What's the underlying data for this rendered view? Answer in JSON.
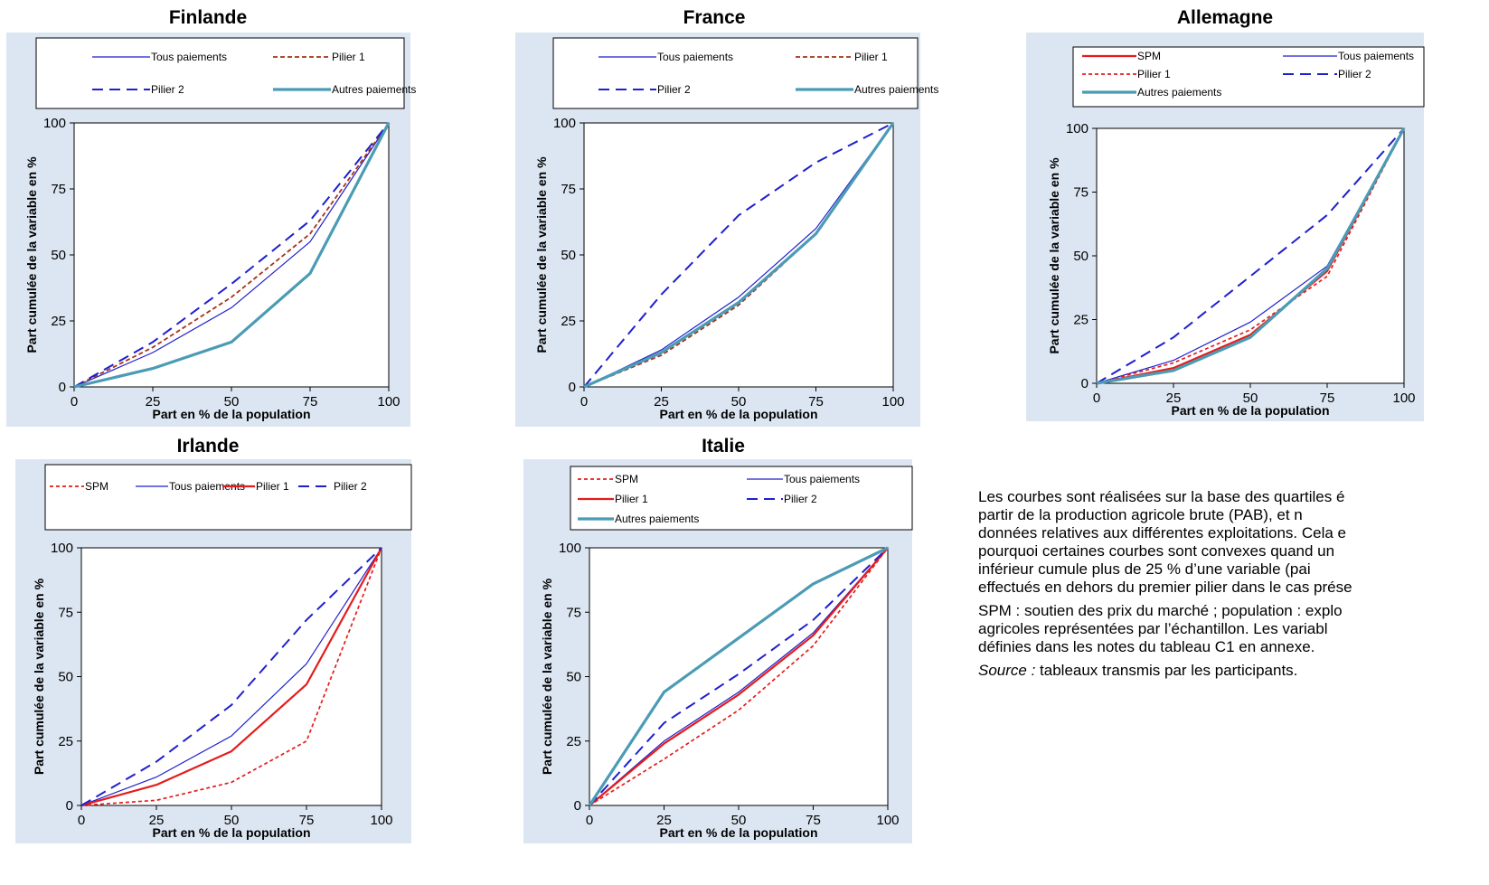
{
  "colors": {
    "background": "#dce6f2",
    "blue": "#1f1fcf",
    "dark_red": "#a5331a",
    "red": "#e41c1c",
    "teal": "#4b9bb5"
  },
  "charts": [
    {
      "title": "Finlande",
      "legend": [
        {
          "name": "Tous paiements",
          "style": "thin-blue"
        },
        {
          "name": "Pilier 1",
          "style": "dash-darkred"
        },
        {
          "name": "Pilier 2",
          "style": "dash-blue"
        },
        {
          "name": "Autres paiements",
          "style": "thick-teal"
        }
      ]
    },
    {
      "title": "France",
      "legend": [
        {
          "name": "Tous paiements",
          "style": "thin-blue"
        },
        {
          "name": "Pilier 1",
          "style": "dash-darkred"
        },
        {
          "name": "Pilier 2",
          "style": "dash-blue"
        },
        {
          "name": "Autres paiements",
          "style": "thick-teal"
        }
      ]
    },
    {
      "title": "Allemagne",
      "legend": [
        {
          "name": "SPM",
          "style": "solid-red"
        },
        {
          "name": "Tous paiements",
          "style": "thin-blue"
        },
        {
          "name": "Pilier 1",
          "style": "dash-red"
        },
        {
          "name": "Pilier 2",
          "style": "dash-blue"
        },
        {
          "name": "Autres paiements",
          "style": "thick-teal"
        }
      ]
    },
    {
      "title": "Irlande",
      "legend": [
        {
          "name": "SPM",
          "style": "dash-red"
        },
        {
          "name": "Tous paiements",
          "style": "thin-blue"
        },
        {
          "name": "Pilier 1",
          "style": "solid-red"
        },
        {
          "name": "Pilier 2",
          "style": "dash-blue"
        }
      ]
    },
    {
      "title": "Italie",
      "legend": [
        {
          "name": "SPM",
          "style": "dash-red"
        },
        {
          "name": "Tous paiements",
          "style": "thin-blue"
        },
        {
          "name": "Pilier 1",
          "style": "solid-red"
        },
        {
          "name": "Pilier 2",
          "style": "dash-blue"
        },
        {
          "name": "Autres paiements",
          "style": "thick-teal"
        }
      ]
    }
  ],
  "chart_data": [
    {
      "type": "line",
      "title": "Finlande",
      "xlabel": "Part en % de la population",
      "ylabel": "Part cumulée de la variable en %",
      "x": [
        0,
        25,
        50,
        75,
        100
      ],
      "xlim": [
        0,
        100
      ],
      "ylim": [
        0,
        100
      ],
      "xticks": [
        "0",
        "25",
        "50",
        "75",
        "100"
      ],
      "yticks": [
        "0",
        "25",
        "50",
        "75",
        "100"
      ],
      "grid": false,
      "legend_position": "top",
      "series": [
        {
          "name": "Tous paiements",
          "style": "thin-blue",
          "values": [
            0,
            13,
            30,
            55,
            100
          ]
        },
        {
          "name": "Pilier 1",
          "style": "dash-darkred",
          "values": [
            0,
            15,
            34,
            58,
            100
          ]
        },
        {
          "name": "Pilier 2",
          "style": "dash-blue",
          "values": [
            0,
            17,
            39,
            63,
            100
          ]
        },
        {
          "name": "Autres paiements",
          "style": "thick-teal",
          "values": [
            0,
            7,
            17,
            43,
            100
          ]
        }
      ]
    },
    {
      "type": "line",
      "title": "France",
      "xlabel": "Part en % de la population",
      "ylabel": "Part cumulée de la variable en %",
      "x": [
        0,
        25,
        50,
        75,
        100
      ],
      "xlim": [
        0,
        100
      ],
      "ylim": [
        0,
        100
      ],
      "xticks": [
        "0",
        "25",
        "50",
        "75",
        "100"
      ],
      "yticks": [
        "0",
        "25",
        "50",
        "75",
        "100"
      ],
      "grid": false,
      "legend_position": "top",
      "series": [
        {
          "name": "Tous paiements",
          "style": "thin-blue",
          "values": [
            0,
            14,
            34,
            60,
            100
          ]
        },
        {
          "name": "Pilier 1",
          "style": "dash-darkred",
          "values": [
            0,
            12,
            31,
            58,
            100
          ]
        },
        {
          "name": "Pilier 2",
          "style": "dash-blue",
          "values": [
            0,
            35,
            65,
            85,
            100
          ]
        },
        {
          "name": "Autres paiements",
          "style": "thick-teal",
          "values": [
            0,
            13,
            32,
            58,
            100
          ]
        }
      ]
    },
    {
      "type": "line",
      "title": "Allemagne",
      "xlabel": "Part en % de la population",
      "ylabel": "Part cumulée de la variable en %",
      "x": [
        0,
        25,
        50,
        75,
        100
      ],
      "xlim": [
        0,
        100
      ],
      "ylim": [
        0,
        100
      ],
      "xticks": [
        "0",
        "25",
        "50",
        "75",
        "100"
      ],
      "yticks": [
        "0",
        "25",
        "50",
        "75",
        "100"
      ],
      "grid": false,
      "legend_position": "top",
      "series": [
        {
          "name": "SPM",
          "style": "solid-red",
          "values": [
            0,
            6,
            19,
            44,
            100
          ]
        },
        {
          "name": "Tous paiements",
          "style": "thin-blue",
          "values": [
            0,
            9,
            24,
            46,
            100
          ]
        },
        {
          "name": "Pilier 1",
          "style": "dash-red",
          "values": [
            0,
            8,
            21,
            42,
            100
          ]
        },
        {
          "name": "Pilier 2",
          "style": "dash-blue",
          "values": [
            0,
            18,
            42,
            66,
            100
          ]
        },
        {
          "name": "Autres paiements",
          "style": "thick-teal",
          "values": [
            0,
            5,
            18,
            45,
            100
          ]
        }
      ]
    },
    {
      "type": "line",
      "title": "Irlande",
      "xlabel": "Part en % de la population",
      "ylabel": "Part cumulée de la variable en %",
      "x": [
        0,
        25,
        50,
        75,
        100
      ],
      "xlim": [
        0,
        100
      ],
      "ylim": [
        0,
        100
      ],
      "xticks": [
        "0",
        "25",
        "50",
        "75",
        "100"
      ],
      "yticks": [
        "0",
        "25",
        "50",
        "75",
        "100"
      ],
      "grid": false,
      "legend_position": "top",
      "series": [
        {
          "name": "SPM",
          "style": "dash-red",
          "values": [
            0,
            2,
            9,
            25,
            100
          ]
        },
        {
          "name": "Tous paiements",
          "style": "thin-blue",
          "values": [
            0,
            11,
            27,
            55,
            100
          ]
        },
        {
          "name": "Pilier 1",
          "style": "solid-red",
          "values": [
            0,
            8,
            21,
            47,
            100
          ]
        },
        {
          "name": "Pilier 2",
          "style": "dash-blue",
          "values": [
            0,
            17,
            39,
            72,
            100
          ]
        }
      ]
    },
    {
      "type": "line",
      "title": "Italie",
      "xlabel": "Part en % de la population",
      "ylabel": "Part cumulée de la variable en %",
      "x": [
        0,
        25,
        50,
        75,
        100
      ],
      "xlim": [
        0,
        100
      ],
      "ylim": [
        0,
        100
      ],
      "xticks": [
        "0",
        "25",
        "50",
        "75",
        "100"
      ],
      "yticks": [
        "0",
        "25",
        "50",
        "75",
        "100"
      ],
      "grid": false,
      "legend_position": "top",
      "series": [
        {
          "name": "SPM",
          "style": "dash-red",
          "values": [
            0,
            18,
            37,
            62,
            100
          ]
        },
        {
          "name": "Tous paiements",
          "style": "thin-blue",
          "values": [
            0,
            25,
            44,
            67,
            100
          ]
        },
        {
          "name": "Pilier 1",
          "style": "solid-red",
          "values": [
            0,
            24,
            43,
            66,
            100
          ]
        },
        {
          "name": "Pilier 2",
          "style": "dash-blue",
          "values": [
            0,
            32,
            51,
            72,
            100
          ]
        },
        {
          "name": "Autres paiements",
          "style": "thick-teal",
          "values": [
            0,
            44,
            65,
            86,
            100
          ]
        }
      ]
    }
  ],
  "notes": {
    "lines_p1": [
      "Les courbes sont réalisées sur la base des quartiles é",
      "partir de la production agricole brute (PAB), et n",
      "données relatives aux différentes exploitations. Cela e",
      "pourquoi certaines courbes sont convexes quand un",
      "inférieur cumule plus de 25 % d’une variable (pai",
      "effectués en dehors du premier pilier dans le cas prése"
    ],
    "lines_p2": [
      "SPM : soutien des prix du marché ; population : explo",
      "agricoles représentées par l’échantillon. Les variabl",
      "définies dans les notes du tableau C1 en annexe."
    ],
    "source_label": "Source :",
    "source_text": " tableaux transmis par les participants."
  }
}
